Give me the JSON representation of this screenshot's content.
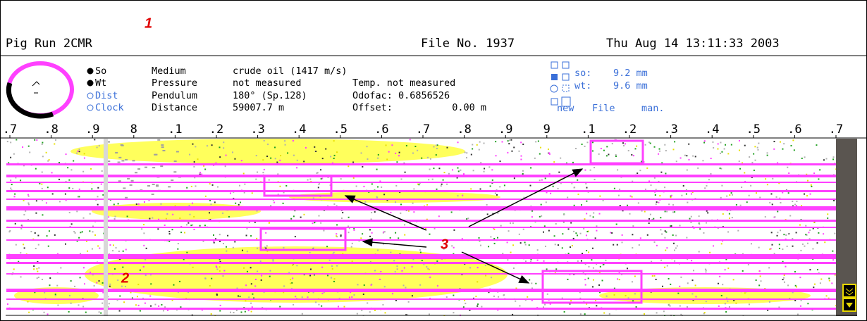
{
  "annotations": [
    "1",
    "2",
    "3"
  ],
  "header": {
    "title": "Pig Run 2CMR",
    "file_no": "File No. 1937",
    "timestamp": "Thu Aug 14 13:11:33 2003"
  },
  "info": {
    "options": [
      "So",
      "Wt",
      "Dist",
      "Clock"
    ],
    "rows": [
      [
        "Medium",
        "crude oil (1417 m/s)"
      ],
      [
        "Pressure",
        "not measured",
        "Temp. not measured"
      ],
      [
        "Pendulum",
        "180° (Sp.128)",
        "Odofac: 0.6856526"
      ],
      [
        "Distance",
        "59007.7 m",
        "Offset:",
        "0.00 m"
      ]
    ],
    "thickness": [
      [
        "so:",
        "9.2 mm"
      ],
      [
        "wt:",
        "9.6 mm"
      ]
    ],
    "actions": [
      "new",
      "File",
      "man."
    ]
  },
  "scale": [
    ".7",
    ".8",
    ".9",
    "8",
    ".1",
    ".2",
    ".3",
    ".4",
    ".5",
    ".6",
    ".7",
    ".8",
    ".9",
    "9",
    ".1",
    ".2",
    ".3",
    ".4",
    ".5",
    ".6",
    ".7"
  ]
}
